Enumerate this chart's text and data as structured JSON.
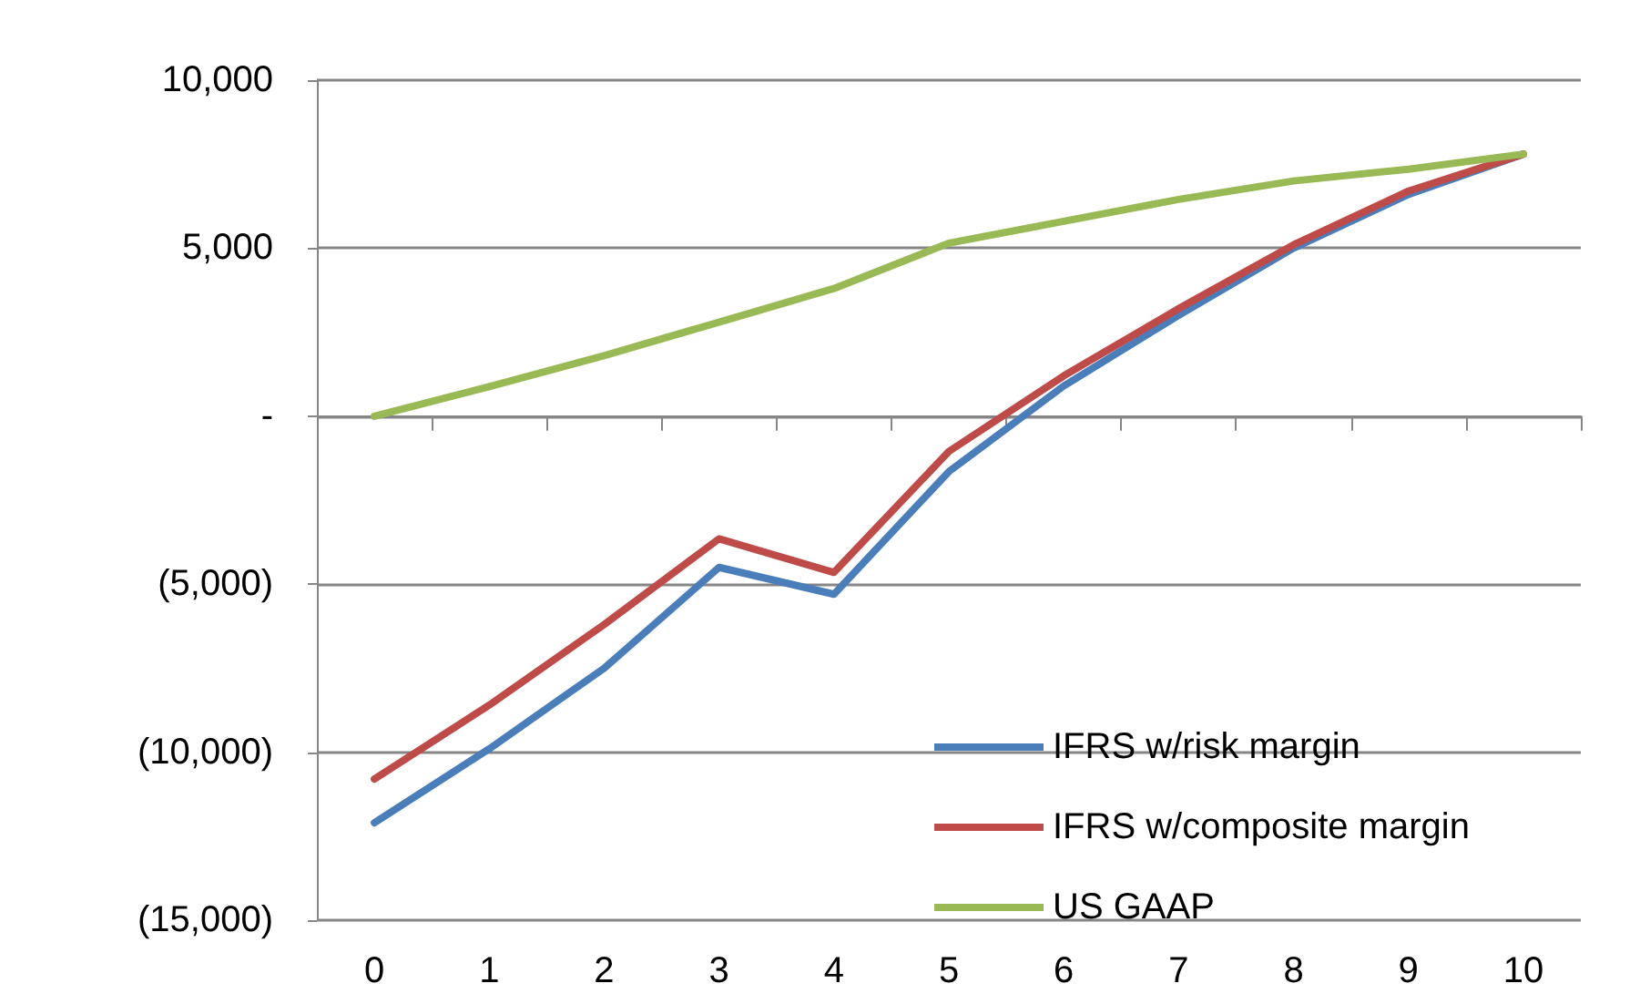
{
  "chart_data": {
    "type": "line",
    "categories": [
      "0",
      "1",
      "2",
      "3",
      "4",
      "5",
      "6",
      "7",
      "8",
      "9",
      "10"
    ],
    "series": [
      {
        "name": "IFRS w/risk margin",
        "color": "#4a7ebb",
        "values": [
          -12100,
          -9900,
          -7500,
          -4500,
          -5300,
          -1650,
          900,
          3000,
          5000,
          6600,
          7800
        ]
      },
      {
        "name": "IFRS w/composite margin",
        "color": "#be4b48",
        "values": [
          -10800,
          -8600,
          -6200,
          -3650,
          -4650,
          -1050,
          1200,
          3200,
          5100,
          6700,
          7800
        ]
      },
      {
        "name": "US GAAP",
        "color": "#98b954",
        "values": [
          0,
          880,
          1800,
          2800,
          3800,
          5150,
          5800,
          6450,
          7000,
          7350,
          7800
        ]
      }
    ],
    "ylim": [
      -15000,
      10000
    ],
    "yticks": [
      {
        "value": -15000,
        "label": "(15,000)"
      },
      {
        "value": -10000,
        "label": "(10,000)"
      },
      {
        "value": -5000,
        "label": "(5,000)"
      },
      {
        "value": 0,
        "label": "-"
      },
      {
        "value": 5000,
        "label": "5,000"
      },
      {
        "value": 10000,
        "label": "10,000"
      }
    ],
    "grid": "y",
    "legend": "bottom right",
    "marker": "none",
    "line_style": "solid"
  }
}
